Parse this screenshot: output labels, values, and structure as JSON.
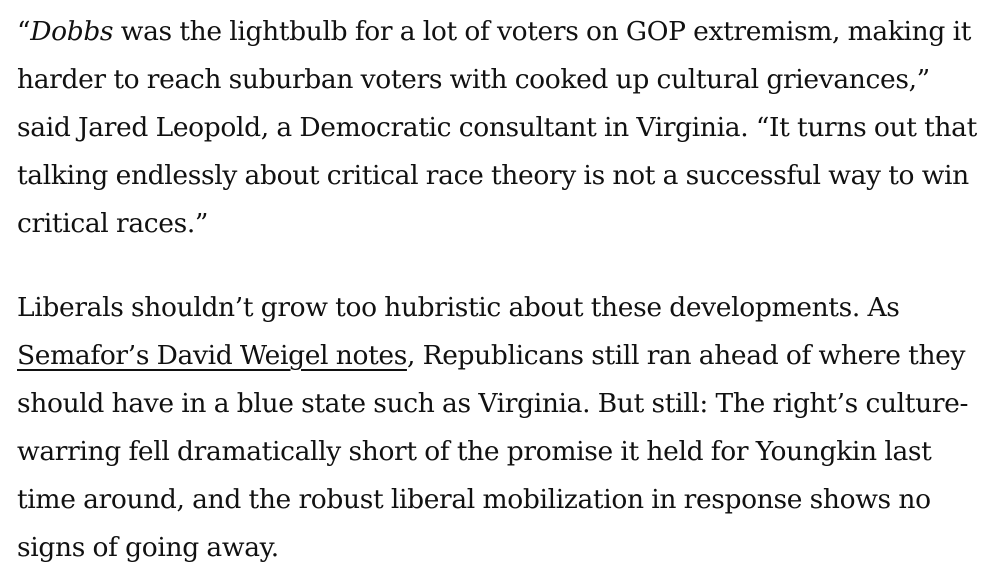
{
  "article": {
    "paragraph_1": {
      "open_quote": "“",
      "italic_word": "Dobbs",
      "text": " was the lightbulb for a lot of voters on GOP extremism, making it harder to reach suburban voters with cooked up cultural grievances,” said Jared Leopold, a Democratic consultant in Virginia. “It turns out that talking endlessly about critical race theory is not a successful way to win critical races.”"
    },
    "paragraph_2": {
      "text_before_link": "Liberals shouldn’t grow too hubristic about these developments. As ",
      "link_text": "Semafor’s David Weigel notes",
      "text_after_link": ", Republicans still ran ahead of where they should have in a blue state such as Virginia. But still: The right’s culture-warring fell dramatically short of the promise it held for Youngkin last time around, and the robust liberal mobilization in response shows no signs of going away."
    }
  }
}
